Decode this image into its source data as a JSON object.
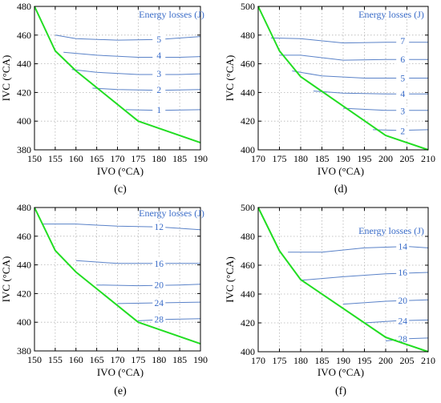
{
  "colors": {
    "contour": "#5a82c8",
    "boundary": "#22dd22",
    "label": "#3a6cc8",
    "grid": "#b4b4b4",
    "axis": "#000000"
  },
  "chart_data": [
    {
      "type": "line",
      "panel_label": "(c)",
      "xlabel": "IVO (°CA)",
      "ylabel": "IVC (°CA)",
      "xlim": [
        150,
        190
      ],
      "ylim": [
        380,
        480
      ],
      "xticks": [
        150,
        155,
        160,
        165,
        170,
        175,
        180,
        185,
        190
      ],
      "yticks": [
        380,
        400,
        420,
        440,
        460,
        480
      ],
      "grid": true,
      "legend_title": "Energy losses (J)",
      "boundary": {
        "x": [
          150,
          155,
          160,
          175,
          190
        ],
        "y": [
          480,
          449,
          435,
          400,
          385
        ]
      },
      "contours": [
        {
          "label": "5",
          "label_at": [
            180,
            457
          ],
          "x": [
            155,
            160,
            170,
            180,
            190
          ],
          "y": [
            460,
            457.5,
            456.5,
            457,
            459
          ]
        },
        {
          "label": "4",
          "label_at": [
            180,
            446
          ],
          "x": [
            157,
            165,
            175,
            185,
            190
          ],
          "y": [
            448,
            446,
            444.5,
            444.5,
            445
          ]
        },
        {
          "label": "3",
          "label_at": [
            180,
            433
          ],
          "x": [
            159,
            165,
            175,
            185,
            190
          ],
          "y": [
            436,
            434,
            432.5,
            432.5,
            433
          ]
        },
        {
          "label": "2",
          "label_at": [
            180,
            422
          ],
          "x": [
            164,
            170,
            180,
            190
          ],
          "y": [
            423,
            422,
            421.5,
            422
          ]
        },
        {
          "label": "1",
          "label_at": [
            180,
            408
          ],
          "x": [
            172,
            180,
            190
          ],
          "y": [
            408,
            407.5,
            408
          ]
        }
      ]
    },
    {
      "type": "line",
      "panel_label": "(d)",
      "xlabel": "IVO (°CA)",
      "ylabel": "IVC (°CA)",
      "xlim": [
        170,
        210
      ],
      "ylim": [
        400,
        500
      ],
      "xticks": [
        170,
        175,
        180,
        185,
        190,
        195,
        200,
        205,
        210
      ],
      "yticks": [
        400,
        420,
        440,
        460,
        480,
        500
      ],
      "grid": true,
      "legend_title": "Energy losses (J)",
      "boundary": {
        "x": [
          170,
          175,
          180,
          200,
          210
        ],
        "y": [
          500,
          469,
          451,
          410,
          400
        ]
      },
      "contours": [
        {
          "label": "7",
          "label_at": [
            204,
            476
          ],
          "x": [
            173,
            180,
            190,
            200,
            210
          ],
          "y": [
            478,
            477.5,
            474.5,
            475,
            475
          ]
        },
        {
          "label": "6",
          "label_at": [
            204,
            463
          ],
          "x": [
            175,
            180,
            190,
            200,
            210
          ],
          "y": [
            466,
            466,
            462.5,
            463,
            463
          ]
        },
        {
          "label": "5",
          "label_at": [
            204,
            450
          ],
          "x": [
            178,
            185,
            195,
            205,
            210
          ],
          "y": [
            455,
            451.5,
            450,
            450,
            450
          ]
        },
        {
          "label": "4",
          "label_at": [
            204,
            439
          ],
          "x": [
            183,
            190,
            200,
            210
          ],
          "y": [
            441,
            439.5,
            439,
            439
          ]
        },
        {
          "label": "3",
          "label_at": [
            204,
            427
          ],
          "x": [
            190,
            200,
            210
          ],
          "y": [
            429,
            427.5,
            427.5
          ]
        },
        {
          "label": "2",
          "label_at": [
            204,
            413
          ],
          "x": [
            197,
            203,
            210
          ],
          "y": [
            414,
            413.5,
            414
          ]
        }
      ]
    },
    {
      "type": "line",
      "panel_label": "(e)",
      "xlabel": "IVO (°CA)",
      "ylabel": "IVC (°CA)",
      "xlim": [
        150,
        190
      ],
      "ylim": [
        380,
        480
      ],
      "xticks": [
        150,
        155,
        160,
        165,
        170,
        175,
        180,
        185,
        190
      ],
      "yticks": [
        380,
        400,
        420,
        440,
        460,
        480
      ],
      "grid": true,
      "legend_title": "Energy losses (J)",
      "boundary": {
        "x": [
          150,
          155,
          160,
          175,
          190
        ],
        "y": [
          480,
          450,
          435,
          400,
          385
        ]
      },
      "contours": [
        {
          "label": "12",
          "label_at": [
            180,
            466.5
          ],
          "x": [
            152,
            160,
            170,
            180,
            190
          ],
          "y": [
            468.5,
            468.5,
            467,
            466.5,
            464.5
          ]
        },
        {
          "label": "16",
          "label_at": [
            180,
            441
          ],
          "x": [
            160,
            170,
            180,
            190
          ],
          "y": [
            443,
            441,
            441,
            441
          ]
        },
        {
          "label": "20",
          "label_at": [
            180,
            426
          ],
          "x": [
            165,
            175,
            185,
            190
          ],
          "y": [
            426,
            425.5,
            426,
            426.5
          ]
        },
        {
          "label": "24",
          "label_at": [
            180,
            413.5
          ],
          "x": [
            170,
            180,
            190
          ],
          "y": [
            413,
            413.5,
            414
          ]
        },
        {
          "label": "28",
          "label_at": [
            180,
            402
          ],
          "x": [
            175,
            182,
            190
          ],
          "y": [
            401,
            402,
            402.5
          ]
        }
      ]
    },
    {
      "type": "line",
      "panel_label": "(f)",
      "xlabel": "IVO (°CA)",
      "ylabel": "IVC (°CA)",
      "xlim": [
        170,
        210
      ],
      "ylim": [
        400,
        500
      ],
      "xticks": [
        170,
        175,
        180,
        185,
        190,
        195,
        200,
        205,
        210
      ],
      "yticks": [
        400,
        420,
        440,
        460,
        480,
        500
      ],
      "grid": true,
      "legend_title": "Energy losses (J)",
      "boundary": {
        "x": [
          170,
          175,
          180,
          200,
          210
        ],
        "y": [
          500,
          470,
          450,
          410,
          400
        ]
      },
      "contours": [
        {
          "label": "14",
          "label_at": [
            204,
            473
          ],
          "x": [
            177,
            185,
            195,
            205,
            210
          ],
          "y": [
            469,
            469,
            472,
            473,
            472
          ]
        },
        {
          "label": "16",
          "label_at": [
            204,
            455
          ],
          "x": [
            180,
            190,
            200,
            210
          ],
          "y": [
            449.5,
            452,
            454,
            455
          ]
        },
        {
          "label": "20",
          "label_at": [
            204,
            435.5
          ],
          "x": [
            190,
            200,
            210
          ],
          "y": [
            433,
            435,
            436
          ]
        },
        {
          "label": "24",
          "label_at": [
            204,
            421.5
          ],
          "x": [
            195,
            203,
            210
          ],
          "y": [
            420,
            421.5,
            422
          ]
        },
        {
          "label": "28",
          "label_at": [
            204,
            409
          ],
          "x": [
            200,
            205,
            210
          ],
          "y": [
            407.5,
            409,
            409.5
          ]
        }
      ]
    }
  ]
}
